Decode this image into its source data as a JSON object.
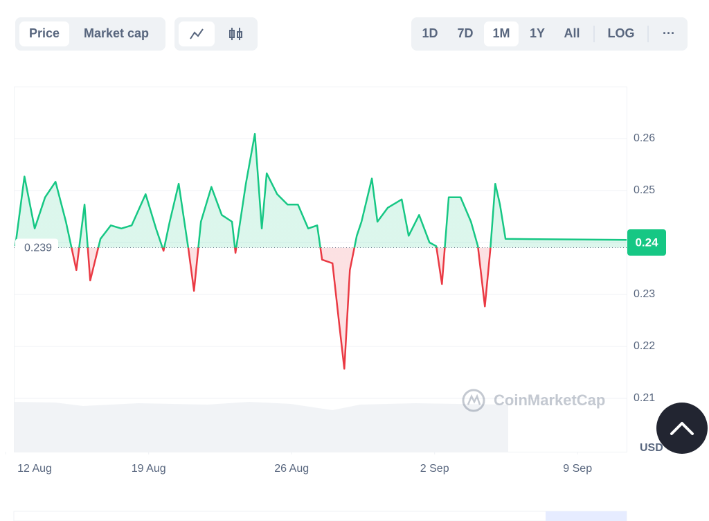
{
  "toolbar": {
    "views": [
      "Price",
      "Market cap"
    ],
    "active_view": "Price",
    "ranges": [
      "1D",
      "7D",
      "1M",
      "1Y",
      "All"
    ],
    "active_range": "1M",
    "scale_button": "LOG",
    "more": "···"
  },
  "chart_data": {
    "type": "line",
    "x": [
      0.47,
      0.92,
      1.42,
      1.93,
      2.44,
      2.95,
      3.46,
      3.86,
      4.14,
      4.64,
      5.15,
      5.66,
      6.17,
      6.85,
      7.36,
      7.73,
      8.03,
      8.47,
      8.95,
      9.22,
      9.56,
      10.07,
      10.58,
      11.08,
      11.25,
      11.76,
      12.2,
      12.54,
      12.78,
      13.29,
      13.8,
      14.31,
      14.81,
      15.25,
      15.49,
      16.0,
      16.34,
      16.58,
      16.85,
      17.19,
      17.42,
      17.93,
      18.2,
      18.71,
      19.39,
      19.73,
      20.24,
      20.75,
      21.08,
      21.36,
      21.69,
      22.27,
      22.78,
      23.12,
      23.46,
      23.73,
      23.97,
      24.2,
      24.47,
      30.4
    ],
    "values": [
      0.2393,
      0.2527,
      0.2427,
      0.2487,
      0.2517,
      0.244,
      0.2347,
      0.2473,
      0.2327,
      0.2407,
      0.2433,
      0.2427,
      0.2433,
      0.2493,
      0.2427,
      0.2384,
      0.244,
      0.2513,
      0.2387,
      0.2307,
      0.244,
      0.2507,
      0.2453,
      0.244,
      0.238,
      0.2513,
      0.2609,
      0.2427,
      0.2533,
      0.2493,
      0.2473,
      0.2473,
      0.2427,
      0.2433,
      0.2367,
      0.236,
      0.224,
      0.2157,
      0.2347,
      0.2413,
      0.244,
      0.2523,
      0.244,
      0.2467,
      0.2483,
      0.2413,
      0.2453,
      0.24,
      0.2393,
      0.232,
      0.2487,
      0.2487,
      0.244,
      0.2393,
      0.2277,
      0.2387,
      0.2513,
      0.2473,
      0.2407,
      0.2405
    ],
    "baseline": 0.239,
    "current_value": 0.24,
    "up_color": "#16c784",
    "down_color": "#ea3943",
    "xlim": [
      0.4,
      30.4
    ],
    "xticks": [
      {
        "value": 0,
        "label": "12 Aug"
      },
      {
        "value": 7,
        "label": "19 Aug"
      },
      {
        "value": 14,
        "label": "26 Aug"
      },
      {
        "value": 21,
        "label": "2 Sep"
      },
      {
        "value": 28,
        "label": "9 Sep"
      }
    ],
    "ylim": [
      0.2,
      0.27
    ],
    "yticks": [
      0.21,
      0.22,
      0.23,
      0.24,
      0.25,
      0.26
    ],
    "y_unit": "USD",
    "watermark": "CoinMarketCap",
    "grid": true
  }
}
